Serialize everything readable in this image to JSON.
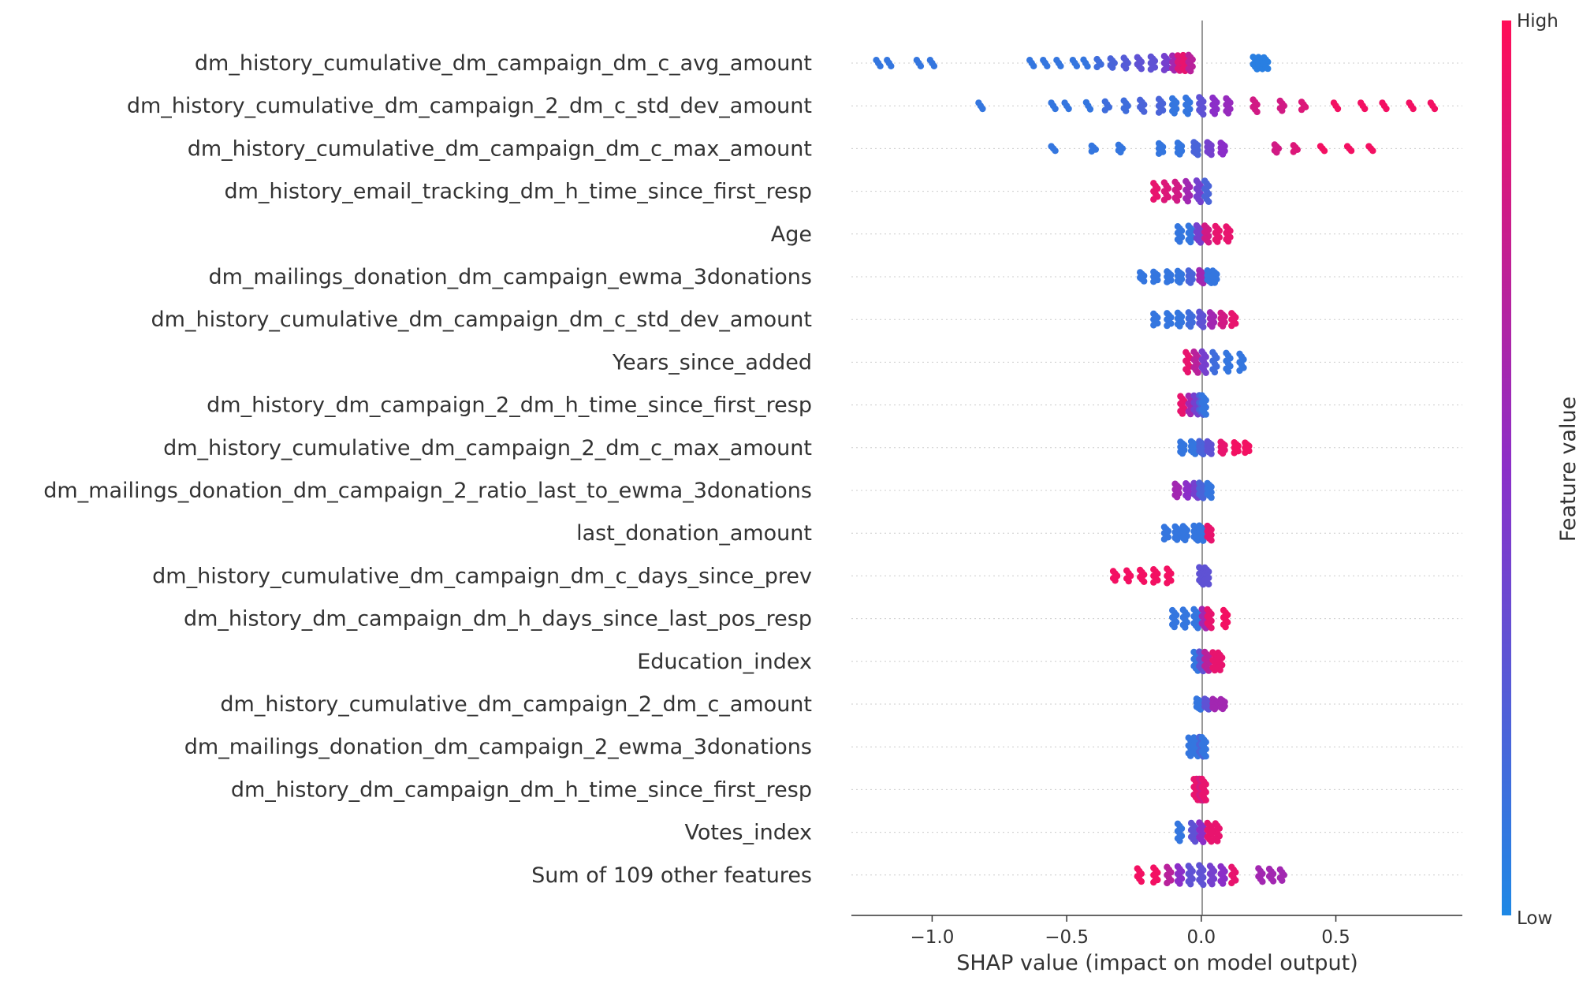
{
  "chart_data": {
    "type": "scatter",
    "subtype": "shap-beeswarm",
    "xlabel": "SHAP value (impact on model output)",
    "xlim": [
      -1.3,
      0.97
    ],
    "xticks": [
      -1.0,
      -0.5,
      0.0,
      0.5
    ],
    "xtick_labels": [
      "−1.0",
      "−0.5",
      "0.0",
      "0.5"
    ],
    "grid": false,
    "zero_line": true,
    "colorbar": {
      "label": "Feature value",
      "high_label": "High",
      "low_label": "Low",
      "low_color": "#1e88e5",
      "high_color": "#ff0d57"
    },
    "features": [
      {
        "name": "dm_history_cumulative_dm_campaign_dm_c_avg_amount",
        "points": [
          [
            -1.2,
            0.1
          ],
          [
            -1.16,
            0.1
          ],
          [
            -1.05,
            0.1
          ],
          [
            -1.0,
            0.1
          ],
          [
            -0.63,
            0.1
          ],
          [
            -0.58,
            0.1
          ],
          [
            -0.53,
            0.1
          ],
          [
            -0.47,
            0.1
          ],
          [
            -0.43,
            0.1
          ],
          [
            -0.38,
            0.15
          ],
          [
            -0.33,
            0.2
          ],
          [
            -0.28,
            0.25
          ],
          [
            -0.23,
            0.3
          ],
          [
            -0.18,
            0.3
          ],
          [
            -0.13,
            0.4
          ],
          [
            -0.1,
            0.6
          ],
          [
            -0.08,
            0.85
          ],
          [
            -0.06,
            0.9
          ],
          [
            -0.04,
            0.7
          ],
          [
            0.2,
            0.05
          ],
          [
            0.22,
            0.05
          ],
          [
            0.24,
            0.05
          ]
        ],
        "max_spread": 0.4
      },
      {
        "name": "dm_history_cumulative_dm_campaign_2_dm_c_std_dev_amount",
        "points": [
          [
            -0.82,
            0.1
          ],
          [
            -0.55,
            0.1
          ],
          [
            -0.5,
            0.1
          ],
          [
            -0.42,
            0.1
          ],
          [
            -0.35,
            0.15
          ],
          [
            -0.28,
            0.15
          ],
          [
            -0.22,
            0.2
          ],
          [
            -0.15,
            0.2
          ],
          [
            -0.1,
            0.1
          ],
          [
            -0.05,
            0.1
          ],
          [
            0.0,
            0.3
          ],
          [
            0.05,
            0.5
          ],
          [
            0.1,
            0.55
          ],
          [
            0.2,
            0.8
          ],
          [
            0.3,
            0.8
          ],
          [
            0.38,
            0.85
          ],
          [
            0.5,
            0.95
          ],
          [
            0.6,
            0.95
          ],
          [
            0.68,
            0.95
          ],
          [
            0.78,
            0.95
          ],
          [
            0.86,
            0.95
          ]
        ],
        "max_spread": 0.4
      },
      {
        "name": "dm_history_cumulative_dm_campaign_dm_c_max_amount",
        "points": [
          [
            -0.55,
            0.1
          ],
          [
            -0.4,
            0.1
          ],
          [
            -0.3,
            0.1
          ],
          [
            -0.15,
            0.1
          ],
          [
            -0.08,
            0.1
          ],
          [
            -0.02,
            0.2
          ],
          [
            0.03,
            0.4
          ],
          [
            0.08,
            0.5
          ],
          [
            0.28,
            0.8
          ],
          [
            0.35,
            0.85
          ],
          [
            0.45,
            0.95
          ],
          [
            0.55,
            0.95
          ],
          [
            0.63,
            0.95
          ]
        ],
        "max_spread": 0.3
      },
      {
        "name": "dm_history_email_tracking_dm_h_time_since_first_resp",
        "points": [
          [
            -0.17,
            0.9
          ],
          [
            -0.13,
            0.85
          ],
          [
            -0.09,
            0.8
          ],
          [
            -0.05,
            0.6
          ],
          [
            -0.01,
            0.4
          ],
          [
            0.02,
            0.2
          ]
        ],
        "max_spread": 0.5
      },
      {
        "name": "Age",
        "points": [
          [
            -0.08,
            0.1
          ],
          [
            -0.04,
            0.1
          ],
          [
            -0.01,
            0.4
          ],
          [
            0.02,
            0.8
          ],
          [
            0.06,
            0.9
          ],
          [
            0.1,
            0.9
          ]
        ],
        "max_spread": 0.4
      },
      {
        "name": "dm_mailings_donation_dm_campaign_ewma_3donations",
        "points": [
          [
            -0.22,
            0.1
          ],
          [
            -0.17,
            0.1
          ],
          [
            -0.12,
            0.1
          ],
          [
            -0.08,
            0.1
          ],
          [
            -0.04,
            0.2
          ],
          [
            0.0,
            0.6
          ],
          [
            0.03,
            0.1
          ],
          [
            0.05,
            0.1
          ]
        ],
        "max_spread": 0.3
      },
      {
        "name": "dm_history_cumulative_dm_campaign_dm_c_std_dev_amount",
        "points": [
          [
            -0.17,
            0.1
          ],
          [
            -0.12,
            0.1
          ],
          [
            -0.08,
            0.1
          ],
          [
            -0.04,
            0.15
          ],
          [
            0.0,
            0.3
          ],
          [
            0.04,
            0.6
          ],
          [
            0.08,
            0.8
          ],
          [
            0.12,
            0.9
          ]
        ],
        "max_spread": 0.35
      },
      {
        "name": "Years_since_added",
        "points": [
          [
            -0.05,
            0.9
          ],
          [
            -0.02,
            0.7
          ],
          [
            0.01,
            0.4
          ],
          [
            0.05,
            0.15
          ],
          [
            0.1,
            0.1
          ],
          [
            0.15,
            0.1
          ]
        ],
        "max_spread": 0.5
      },
      {
        "name": "dm_history_dm_campaign_2_dm_h_time_since_first_resp",
        "points": [
          [
            -0.07,
            0.9
          ],
          [
            -0.04,
            0.6
          ],
          [
            -0.02,
            0.4
          ],
          [
            0.0,
            0.2
          ],
          [
            0.01,
            0.1
          ]
        ],
        "max_spread": 0.45
      },
      {
        "name": "dm_history_cumulative_dm_campaign_2_dm_c_max_amount",
        "points": [
          [
            -0.07,
            0.1
          ],
          [
            -0.03,
            0.1
          ],
          [
            0.0,
            0.2
          ],
          [
            0.03,
            0.3
          ],
          [
            0.08,
            0.9
          ],
          [
            0.13,
            0.95
          ],
          [
            0.17,
            0.95
          ]
        ],
        "max_spread": 0.3
      },
      {
        "name": "dm_mailings_donation_dm_campaign_2_ratio_last_to_ewma_3donations",
        "points": [
          [
            -0.09,
            0.6
          ],
          [
            -0.05,
            0.5
          ],
          [
            -0.02,
            0.4
          ],
          [
            0.0,
            0.2
          ],
          [
            0.03,
            0.1
          ]
        ],
        "max_spread": 0.35
      },
      {
        "name": "last_donation_amount",
        "points": [
          [
            -0.13,
            0.1
          ],
          [
            -0.09,
            0.1
          ],
          [
            -0.06,
            0.1
          ],
          [
            -0.02,
            0.1
          ],
          [
            0.0,
            0.1
          ],
          [
            0.03,
            0.9
          ]
        ],
        "max_spread": 0.35
      },
      {
        "name": "dm_history_cumulative_dm_campaign_dm_c_days_since_prev",
        "points": [
          [
            -0.32,
            0.95
          ],
          [
            -0.27,
            0.95
          ],
          [
            -0.22,
            0.95
          ],
          [
            -0.17,
            0.95
          ],
          [
            -0.12,
            0.95
          ],
          [
            0.0,
            0.3
          ],
          [
            0.02,
            0.3
          ]
        ],
        "max_spread": 0.4
      },
      {
        "name": "dm_history_dm_campaign_dm_h_days_since_last_pos_resp",
        "points": [
          [
            -0.1,
            0.1
          ],
          [
            -0.06,
            0.1
          ],
          [
            -0.02,
            0.1
          ],
          [
            0.01,
            0.6
          ],
          [
            0.03,
            0.9
          ],
          [
            0.09,
            0.95
          ]
        ],
        "max_spread": 0.45
      },
      {
        "name": "Education_index",
        "points": [
          [
            -0.02,
            0.1
          ],
          [
            0.0,
            0.3
          ],
          [
            0.02,
            0.7
          ],
          [
            0.05,
            0.9
          ],
          [
            0.07,
            0.9
          ]
        ],
        "max_spread": 0.45
      },
      {
        "name": "dm_history_cumulative_dm_campaign_2_dm_c_amount",
        "points": [
          [
            -0.01,
            0.1
          ],
          [
            0.02,
            0.3
          ],
          [
            0.05,
            0.6
          ],
          [
            0.08,
            0.6
          ]
        ],
        "max_spread": 0.25
      },
      {
        "name": "dm_mailings_donation_dm_campaign_2_ewma_3donations",
        "points": [
          [
            -0.04,
            0.1
          ],
          [
            -0.02,
            0.1
          ],
          [
            0.0,
            0.2
          ],
          [
            0.01,
            0.1
          ]
        ],
        "max_spread": 0.45
      },
      {
        "name": "dm_history_dm_campaign_dm_h_time_since_first_resp",
        "points": [
          [
            -0.02,
            0.9
          ],
          [
            -0.01,
            0.9
          ],
          [
            0.0,
            0.8
          ],
          [
            0.01,
            0.9
          ]
        ],
        "max_spread": 0.5
      },
      {
        "name": "Votes_index",
        "points": [
          [
            -0.08,
            0.1
          ],
          [
            -0.03,
            0.3
          ],
          [
            0.0,
            0.5
          ],
          [
            0.03,
            0.9
          ],
          [
            0.06,
            0.9
          ]
        ],
        "max_spread": 0.45
      },
      {
        "name": "Sum of 109 other features",
        "points": [
          [
            -0.23,
            0.95
          ],
          [
            -0.17,
            0.95
          ],
          [
            -0.12,
            0.7
          ],
          [
            -0.08,
            0.5
          ],
          [
            -0.04,
            0.3
          ],
          [
            0.0,
            0.3
          ],
          [
            0.04,
            0.4
          ],
          [
            0.08,
            0.5
          ],
          [
            0.12,
            0.9
          ],
          [
            0.22,
            0.6
          ],
          [
            0.26,
            0.6
          ],
          [
            0.3,
            0.6
          ]
        ],
        "max_spread": 0.45
      }
    ]
  }
}
